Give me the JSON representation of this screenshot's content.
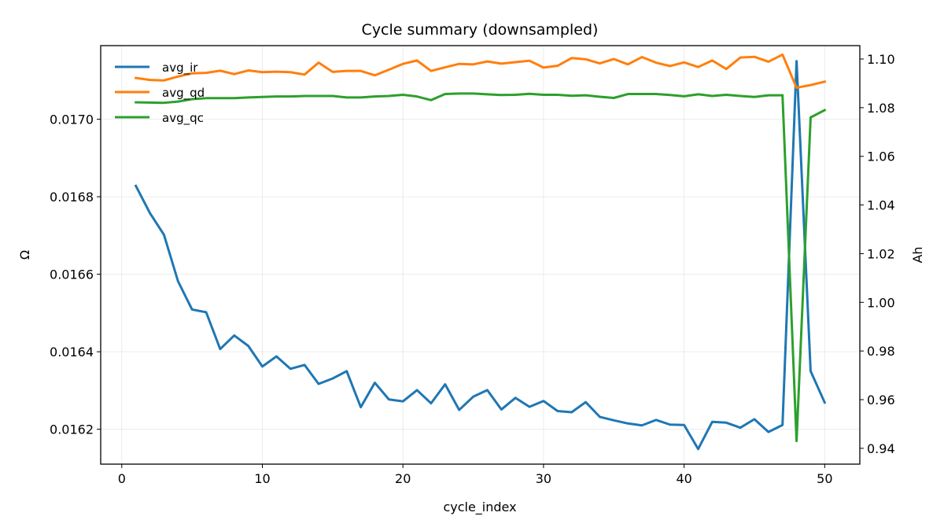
{
  "chart_data": {
    "type": "line",
    "title": "Cycle summary (downsampled)",
    "xlabel": "cycle_index",
    "ylabel_left": "Ω",
    "ylabel_right": "Ah",
    "xlim": [
      -1.5,
      52.5
    ],
    "ylim_left": [
      0.01611,
      0.01719
    ],
    "ylim_right": [
      0.9335,
      1.1055
    ],
    "x_ticks": [
      0,
      10,
      20,
      30,
      40,
      50
    ],
    "y_left_ticks": [
      0.0162,
      0.0164,
      0.0166,
      0.0168,
      0.017
    ],
    "y_right_ticks": [
      0.94,
      0.96,
      0.98,
      1.0,
      1.02,
      1.04,
      1.06,
      1.08,
      1.1
    ],
    "grid": true,
    "legend_position": "top-left",
    "x": [
      1,
      2,
      3,
      4,
      5,
      6,
      7,
      8,
      9,
      10,
      11,
      12,
      13,
      14,
      15,
      16,
      17,
      18,
      19,
      20,
      21,
      22,
      23,
      24,
      25,
      26,
      27,
      28,
      29,
      30,
      31,
      32,
      33,
      34,
      35,
      36,
      37,
      38,
      39,
      40,
      41,
      42,
      43,
      44,
      45,
      46,
      47,
      48,
      49,
      50
    ],
    "series": [
      {
        "name": "avg_ir",
        "axis": "left",
        "color": "#1f77b4",
        "values": [
          0.016828,
          0.016758,
          0.016702,
          0.016582,
          0.016509,
          0.016502,
          0.016407,
          0.016442,
          0.016415,
          0.016362,
          0.016388,
          0.016356,
          0.016366,
          0.016317,
          0.016331,
          0.01635,
          0.016257,
          0.01632,
          0.016277,
          0.016272,
          0.016301,
          0.016267,
          0.016316,
          0.01625,
          0.016284,
          0.016301,
          0.016251,
          0.016281,
          0.016258,
          0.016273,
          0.016247,
          0.016244,
          0.01627,
          0.016232,
          0.016223,
          0.016215,
          0.01621,
          0.016224,
          0.016212,
          0.016211,
          0.016149,
          0.016219,
          0.016217,
          0.016204,
          0.016226,
          0.016193,
          0.016211,
          0.01715,
          0.01635,
          0.016269
        ]
      },
      {
        "name": "avg_qd",
        "axis": "right",
        "color": "#ff7f0e",
        "values": [
          1.0922,
          1.0914,
          1.0912,
          1.0928,
          1.0941,
          1.0943,
          1.0952,
          1.0938,
          1.0953,
          1.0946,
          1.0948,
          1.0946,
          1.0936,
          1.0985,
          1.0947,
          1.0951,
          1.0951,
          1.0933,
          1.0956,
          1.098,
          1.0994,
          1.0951,
          1.0966,
          1.098,
          1.0978,
          1.099,
          1.0981,
          1.0987,
          1.0993,
          1.0965,
          1.0972,
          1.1004,
          1.0999,
          1.0982,
          1.1,
          1.0978,
          1.1008,
          1.0985,
          1.0971,
          1.0986,
          1.0967,
          1.0994,
          1.0959,
          1.1006,
          1.1009,
          1.0989,
          1.1018,
          1.0882,
          1.0893,
          1.0907
        ]
      },
      {
        "name": "avg_qc",
        "axis": "right",
        "color": "#2ca02c",
        "values": [
          1.0822,
          1.0821,
          1.082,
          1.0825,
          1.0835,
          1.0839,
          1.0839,
          1.0839,
          1.0842,
          1.0844,
          1.0846,
          1.0846,
          1.0848,
          1.0848,
          1.0848,
          1.0842,
          1.0842,
          1.0846,
          1.0848,
          1.0853,
          1.0846,
          1.0831,
          1.0856,
          1.0858,
          1.0858,
          1.0855,
          1.0852,
          1.0853,
          1.0857,
          1.0853,
          1.0853,
          1.0849,
          1.0851,
          1.0845,
          1.084,
          1.0856,
          1.0856,
          1.0856,
          1.0852,
          1.0847,
          1.0855,
          1.0848,
          1.0853,
          1.0848,
          1.0844,
          1.0851,
          1.0851,
          0.943,
          1.076,
          1.079
        ]
      }
    ]
  }
}
